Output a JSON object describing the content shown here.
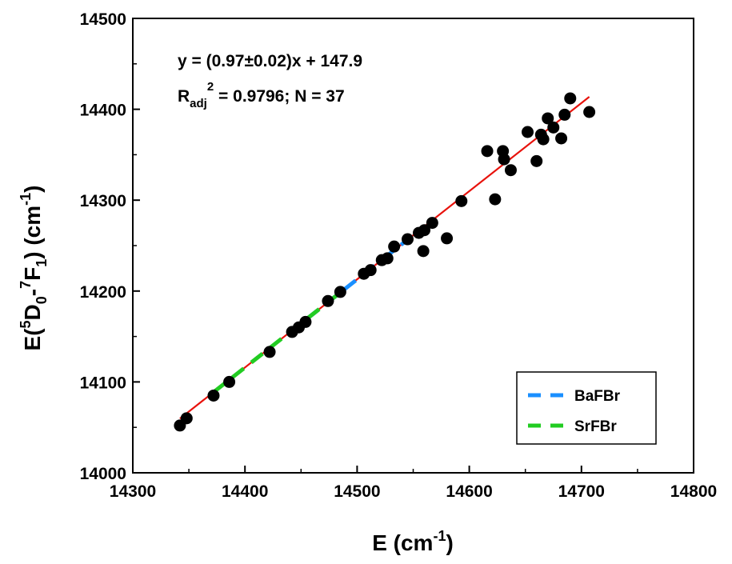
{
  "chart_data": {
    "type": "scatter",
    "xlabel": {
      "main": "E (cm",
      "sup": "-1",
      "end": ")"
    },
    "ylabel": {
      "p1": "E(",
      "sup1": "5",
      "p2": "D",
      "sub1": "0",
      "p3": "-",
      "sup2": "7",
      "p4": "F",
      "sub2": "1",
      "p5": ") (cm",
      "sup3": "-1",
      "p6": ")"
    },
    "xlim": [
      14300,
      14800
    ],
    "ylim": [
      14000,
      14500
    ],
    "xticks": [
      14300,
      14400,
      14500,
      14600,
      14700,
      14800
    ],
    "yticks": [
      14000,
      14100,
      14200,
      14300,
      14400,
      14500
    ],
    "xtick_labels": [
      "14300",
      "14400",
      "14500",
      "14600",
      "14700",
      "14800"
    ],
    "ytick_labels": [
      "14000",
      "14100",
      "14200",
      "14300",
      "14400",
      "14500"
    ],
    "annotation": {
      "line1": "y = (0.97±0.02)x + 147.9",
      "line2_main": "R",
      "line2_sub": "adj",
      "line2_sup": "2",
      "line2_rest": " = 0.9796; N = 37"
    },
    "points": [
      [
        14342,
        14052
      ],
      [
        14372,
        14085
      ],
      [
        14386,
        14100
      ],
      [
        14422,
        14133
      ],
      [
        14442,
        14155
      ],
      [
        14448,
        14160
      ],
      [
        14454,
        14166
      ],
      [
        14474,
        14189
      ],
      [
        14485,
        14199
      ],
      [
        14506,
        14219
      ],
      [
        14512,
        14223
      ],
      [
        14522,
        14234
      ],
      [
        14527,
        14236
      ],
      [
        14533,
        14249
      ],
      [
        14545,
        14257
      ],
      [
        14555,
        14264
      ],
      [
        14559,
        14244
      ],
      [
        14560,
        14267
      ],
      [
        14567,
        14275
      ],
      [
        14580,
        14258
      ],
      [
        14593,
        14299
      ],
      [
        14616,
        14354
      ],
      [
        14623,
        14301
      ],
      [
        14630,
        14354
      ],
      [
        14631,
        14345
      ],
      [
        14637,
        14333
      ],
      [
        14652,
        14375
      ],
      [
        14660,
        14343
      ],
      [
        14664,
        14372
      ],
      [
        14666,
        14367
      ],
      [
        14670,
        14390
      ],
      [
        14675,
        14380
      ],
      [
        14682,
        14368
      ],
      [
        14685,
        14394
      ],
      [
        14690,
        14412
      ],
      [
        14707,
        14397
      ],
      [
        14348,
        14060
      ]
    ],
    "fit": {
      "slope": 0.97,
      "intercept": 147.9,
      "x_range": [
        14342,
        14707
      ],
      "color": "#e8120c"
    },
    "series_segments": [
      {
        "name": "BaFBr",
        "color": "#1a8fff",
        "x_range": [
          14455,
          14545
        ]
      },
      {
        "name": "SrFBr",
        "color": "#22cc22",
        "x_range": [
          14372,
          14485
        ]
      }
    ],
    "legend": {
      "position": "bottom-right",
      "items": [
        {
          "label": "BaFBr",
          "color": "#1a8fff"
        },
        {
          "label": "SrFBr",
          "color": "#22cc22"
        }
      ]
    },
    "grid": false
  }
}
